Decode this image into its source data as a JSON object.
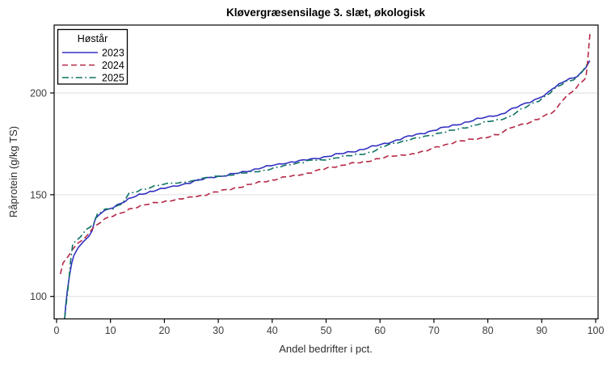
{
  "title": "Kløvergræsensilage 3. slæt, økologisk",
  "colors": {
    "series_2023": "#3330c2",
    "series_2024": "#b42846",
    "series_2025": "#0e7263",
    "gridline": "#e8e8e8",
    "axis_line": "#000000",
    "tick_text": "#3d3d3d",
    "background": "#ffffff"
  },
  "chart_data": {
    "type": "line",
    "title": "Kløvergræsensilage 3. slæt, økologisk",
    "xlabel": "Andel bedrifter i pct.",
    "ylabel": "Råprotein (g/kg TS)",
    "xlim": [
      0,
      100
    ],
    "ylim": [
      88,
      234
    ],
    "x_ticks": [
      0,
      10,
      20,
      30,
      40,
      50,
      60,
      70,
      80,
      90,
      100
    ],
    "y_ticks": [
      100,
      150,
      200
    ],
    "grid": "horizontal gridlines at y ticks only",
    "legend": {
      "title": "Høstår",
      "position": "top-left inside plot",
      "entries": [
        "2023",
        "2024",
        "2025"
      ]
    },
    "series": [
      {
        "name": "2023",
        "color": "#3330c2",
        "line_style": "solid",
        "points": [
          [
            1.5,
            89
          ],
          [
            1.7,
            95
          ],
          [
            2.0,
            103
          ],
          [
            2.4,
            110
          ],
          [
            2.8,
            116
          ],
          [
            3.2,
            120.5
          ],
          [
            4,
            124
          ],
          [
            5,
            127
          ],
          [
            6,
            130
          ],
          [
            6.6,
            132
          ],
          [
            7.2,
            138
          ],
          [
            8,
            140.5
          ],
          [
            9,
            142
          ],
          [
            10.5,
            144
          ],
          [
            12,
            146
          ],
          [
            14,
            148.5
          ],
          [
            16,
            150.5
          ],
          [
            18,
            152
          ],
          [
            20,
            153
          ],
          [
            22.5,
            154.5
          ],
          [
            25.5,
            156.5
          ],
          [
            28.5,
            158.5
          ],
          [
            31.5,
            159.5
          ],
          [
            34.5,
            161
          ],
          [
            37.5,
            163
          ],
          [
            40.5,
            164.5
          ],
          [
            43.5,
            166
          ],
          [
            46.5,
            167
          ],
          [
            49.5,
            168.5
          ],
          [
            52.5,
            170
          ],
          [
            55.5,
            171.5
          ],
          [
            58.5,
            173.5
          ],
          [
            61.5,
            175.5
          ],
          [
            64.5,
            178
          ],
          [
            67.5,
            180
          ],
          [
            70.5,
            182
          ],
          [
            73.5,
            184
          ],
          [
            76.5,
            186
          ],
          [
            79.5,
            188
          ],
          [
            82.5,
            189.5
          ],
          [
            84.5,
            192
          ],
          [
            87,
            195
          ],
          [
            89.5,
            197.5
          ],
          [
            91.2,
            200
          ],
          [
            92.5,
            203
          ],
          [
            94.5,
            206.5
          ],
          [
            96.5,
            208
          ],
          [
            97.5,
            210
          ],
          [
            98.2,
            212.5
          ],
          [
            98.9,
            216
          ]
        ]
      },
      {
        "name": "2024",
        "color": "#b42846",
        "line_style": "dashed",
        "points": [
          [
            0.7,
            111
          ],
          [
            1.2,
            116
          ],
          [
            2.2,
            120
          ],
          [
            3,
            123
          ],
          [
            4,
            126
          ],
          [
            5,
            128.5
          ],
          [
            6,
            131
          ],
          [
            7,
            134.5
          ],
          [
            8,
            136.5
          ],
          [
            9,
            138
          ],
          [
            10.5,
            139.5
          ],
          [
            12,
            141
          ],
          [
            13.5,
            143
          ],
          [
            15,
            144
          ],
          [
            16.5,
            145
          ],
          [
            19.5,
            146.5
          ],
          [
            22.5,
            147.5
          ],
          [
            25.5,
            149
          ],
          [
            28.5,
            150.5
          ],
          [
            31.5,
            152.5
          ],
          [
            34.5,
            154
          ],
          [
            37.5,
            156
          ],
          [
            40.5,
            157.5
          ],
          [
            43.5,
            159
          ],
          [
            46.5,
            160.5
          ],
          [
            48,
            161.5
          ],
          [
            51,
            163.5
          ],
          [
            54,
            165
          ],
          [
            57,
            166
          ],
          [
            60,
            168
          ],
          [
            63,
            169
          ],
          [
            66,
            170
          ],
          [
            68,
            171
          ],
          [
            70.5,
            173.5
          ],
          [
            73.5,
            175.5
          ],
          [
            76.5,
            177
          ],
          [
            79.5,
            178
          ],
          [
            82,
            179.5
          ],
          [
            84.5,
            183.5
          ],
          [
            88,
            185.5
          ],
          [
            90,
            188
          ],
          [
            91,
            189.5
          ],
          [
            92.5,
            191.5
          ],
          [
            94,
            197
          ],
          [
            95.5,
            200
          ],
          [
            96.9,
            204
          ],
          [
            97.8,
            206.5
          ],
          [
            98.2,
            208
          ],
          [
            98.5,
            215
          ],
          [
            98.8,
            225
          ],
          [
            99,
            230.5
          ]
        ]
      },
      {
        "name": "2025",
        "color": "#0e7263",
        "line_style": "dash-dot",
        "points": [
          [
            1.5,
            88
          ],
          [
            1.8,
            96
          ],
          [
            2.2,
            106
          ],
          [
            2.6,
            117
          ],
          [
            3,
            125.5
          ],
          [
            3.7,
            128
          ],
          [
            4.5,
            129.5
          ],
          [
            5.5,
            133
          ],
          [
            6.2,
            134.5
          ],
          [
            6.9,
            135.5
          ],
          [
            7.6,
            140.5
          ],
          [
            9,
            142.5
          ],
          [
            10.5,
            143.5
          ],
          [
            12,
            145.5
          ],
          [
            13.5,
            150.5
          ],
          [
            15,
            151.5
          ],
          [
            16.5,
            153
          ],
          [
            19,
            155
          ],
          [
            22.5,
            155.5
          ],
          [
            25.5,
            157
          ],
          [
            28.5,
            158.5
          ],
          [
            31.5,
            159.5
          ],
          [
            34.5,
            160.5
          ],
          [
            37.5,
            161.5
          ],
          [
            40.5,
            163
          ],
          [
            43.5,
            165
          ],
          [
            46.5,
            166.5
          ],
          [
            49.5,
            167
          ],
          [
            52.5,
            168.5
          ],
          [
            55.5,
            169.5
          ],
          [
            58.5,
            171
          ],
          [
            61.5,
            174.5
          ],
          [
            64.5,
            176.5
          ],
          [
            67.5,
            178
          ],
          [
            70.5,
            180
          ],
          [
            73.5,
            181.5
          ],
          [
            76.5,
            183.5
          ],
          [
            79.5,
            185.5
          ],
          [
            82.5,
            187
          ],
          [
            84.5,
            189
          ],
          [
            87,
            193
          ],
          [
            89.5,
            196.5
          ],
          [
            91.5,
            200
          ],
          [
            93,
            203
          ],
          [
            94.5,
            205.5
          ],
          [
            96.5,
            207.5
          ],
          [
            97.5,
            210.5
          ],
          [
            98.6,
            215
          ]
        ]
      }
    ]
  }
}
